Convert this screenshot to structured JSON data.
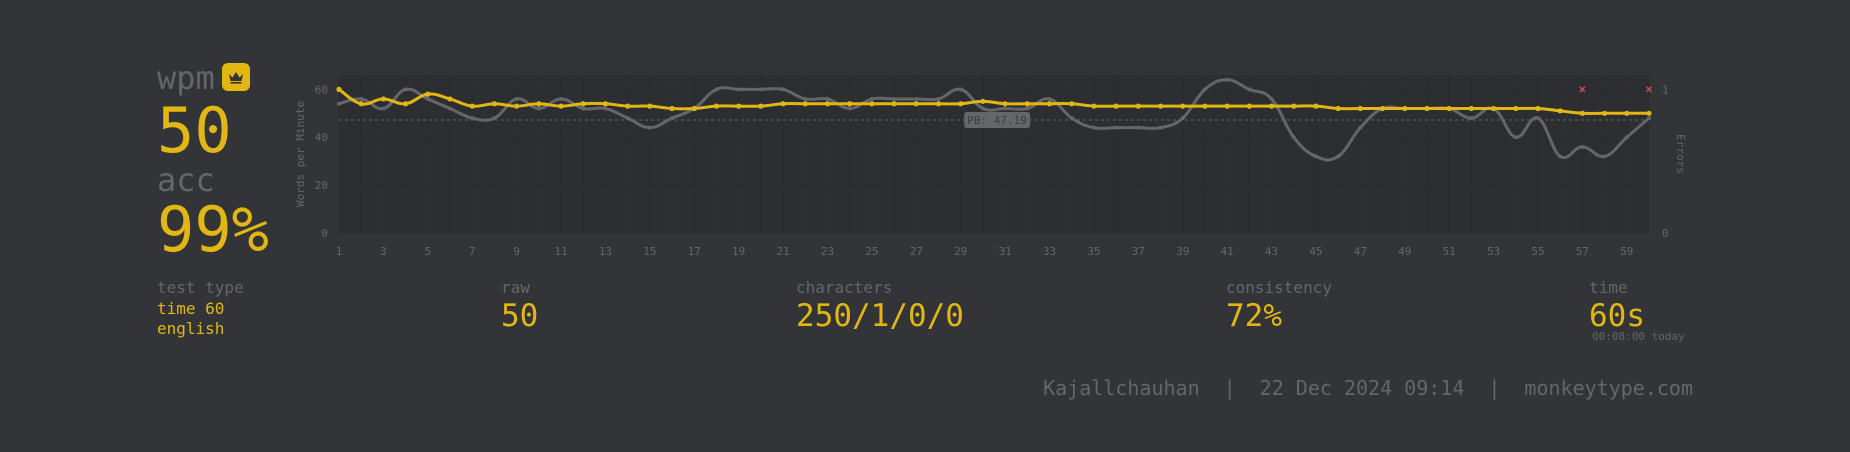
{
  "stats": {
    "wpm_label": "wpm",
    "wpm_value": "50",
    "acc_label": "acc",
    "acc_value": "99%",
    "test_type_label": "test type",
    "test_type_mode": "time 60",
    "test_type_language": "english",
    "raw_label": "raw",
    "raw_value": "50",
    "characters_label": "characters",
    "characters_value": "250/1/0/0",
    "consistency_label": "consistency",
    "consistency_value": "72%",
    "time_label": "time",
    "time_value": "60s",
    "time_today": "00:08:00 today"
  },
  "footer": {
    "username": "Kajallchauhan",
    "separator": "|",
    "datetime": "22 Dec 2024 09:14",
    "site": "monkeytype.com"
  },
  "colors": {
    "background": "#323437",
    "main": "#e2b714",
    "sub": "#646669",
    "raw_line": "#646669",
    "error": "#ca4754"
  },
  "icons": {
    "pb_badge": "crown-icon"
  },
  "chart_data": {
    "type": "line",
    "ylabel": "Words per Minute",
    "y2label": "Errors",
    "x": [
      1,
      2,
      3,
      4,
      5,
      6,
      7,
      8,
      9,
      10,
      11,
      12,
      13,
      14,
      15,
      16,
      17,
      18,
      19,
      20,
      21,
      22,
      23,
      24,
      25,
      26,
      27,
      28,
      29,
      30,
      31,
      32,
      33,
      34,
      35,
      36,
      37,
      38,
      39,
      40,
      41,
      42,
      43,
      44,
      45,
      46,
      47,
      48,
      49,
      50,
      51,
      52,
      53,
      54,
      55,
      56,
      57,
      58,
      59,
      60
    ],
    "x_ticks": [
      1,
      3,
      5,
      7,
      9,
      11,
      13,
      15,
      17,
      19,
      21,
      23,
      25,
      27,
      29,
      31,
      33,
      35,
      37,
      39,
      41,
      43,
      45,
      47,
      49,
      51,
      53,
      55,
      57,
      59
    ],
    "y_ticks": [
      0,
      20,
      40,
      60
    ],
    "ylim": [
      0,
      66
    ],
    "y2_ticks": [
      0,
      1
    ],
    "y2lim": [
      0,
      1.1
    ],
    "series": [
      {
        "name": "wpm",
        "color": "#e2b714",
        "values": [
          60,
          54,
          56,
          54,
          58,
          56,
          53,
          54,
          53,
          54,
          53,
          54,
          54,
          53,
          53,
          52,
          52,
          53,
          53,
          53,
          54,
          54,
          54,
          54,
          54,
          54,
          54,
          54,
          54,
          55,
          54,
          54,
          54,
          54,
          53,
          53,
          53,
          53,
          53,
          53,
          53,
          53,
          53,
          53,
          53,
          52,
          52,
          52,
          52,
          52,
          52,
          52,
          52,
          52,
          52,
          51,
          50,
          50,
          50,
          50
        ]
      },
      {
        "name": "raw",
        "color": "#646669",
        "values": [
          54,
          56,
          52,
          60,
          56,
          52,
          48,
          48,
          56,
          52,
          56,
          52,
          52,
          48,
          44,
          48,
          52,
          60,
          60,
          60,
          60,
          56,
          56,
          52,
          56,
          56,
          56,
          56,
          60,
          52,
          52,
          52,
          56,
          48,
          44,
          44,
          44,
          44,
          48,
          60,
          64,
          60,
          56,
          40,
          32,
          32,
          44,
          52,
          52,
          52,
          52,
          48,
          52,
          40,
          48,
          32,
          36,
          32,
          40,
          48
        ]
      }
    ],
    "pb": {
      "value": 47.19,
      "label": "PB: 47.19"
    },
    "errors": [
      {
        "x": 57,
        "count": 1
      },
      {
        "x": 60,
        "count": 1
      }
    ]
  }
}
